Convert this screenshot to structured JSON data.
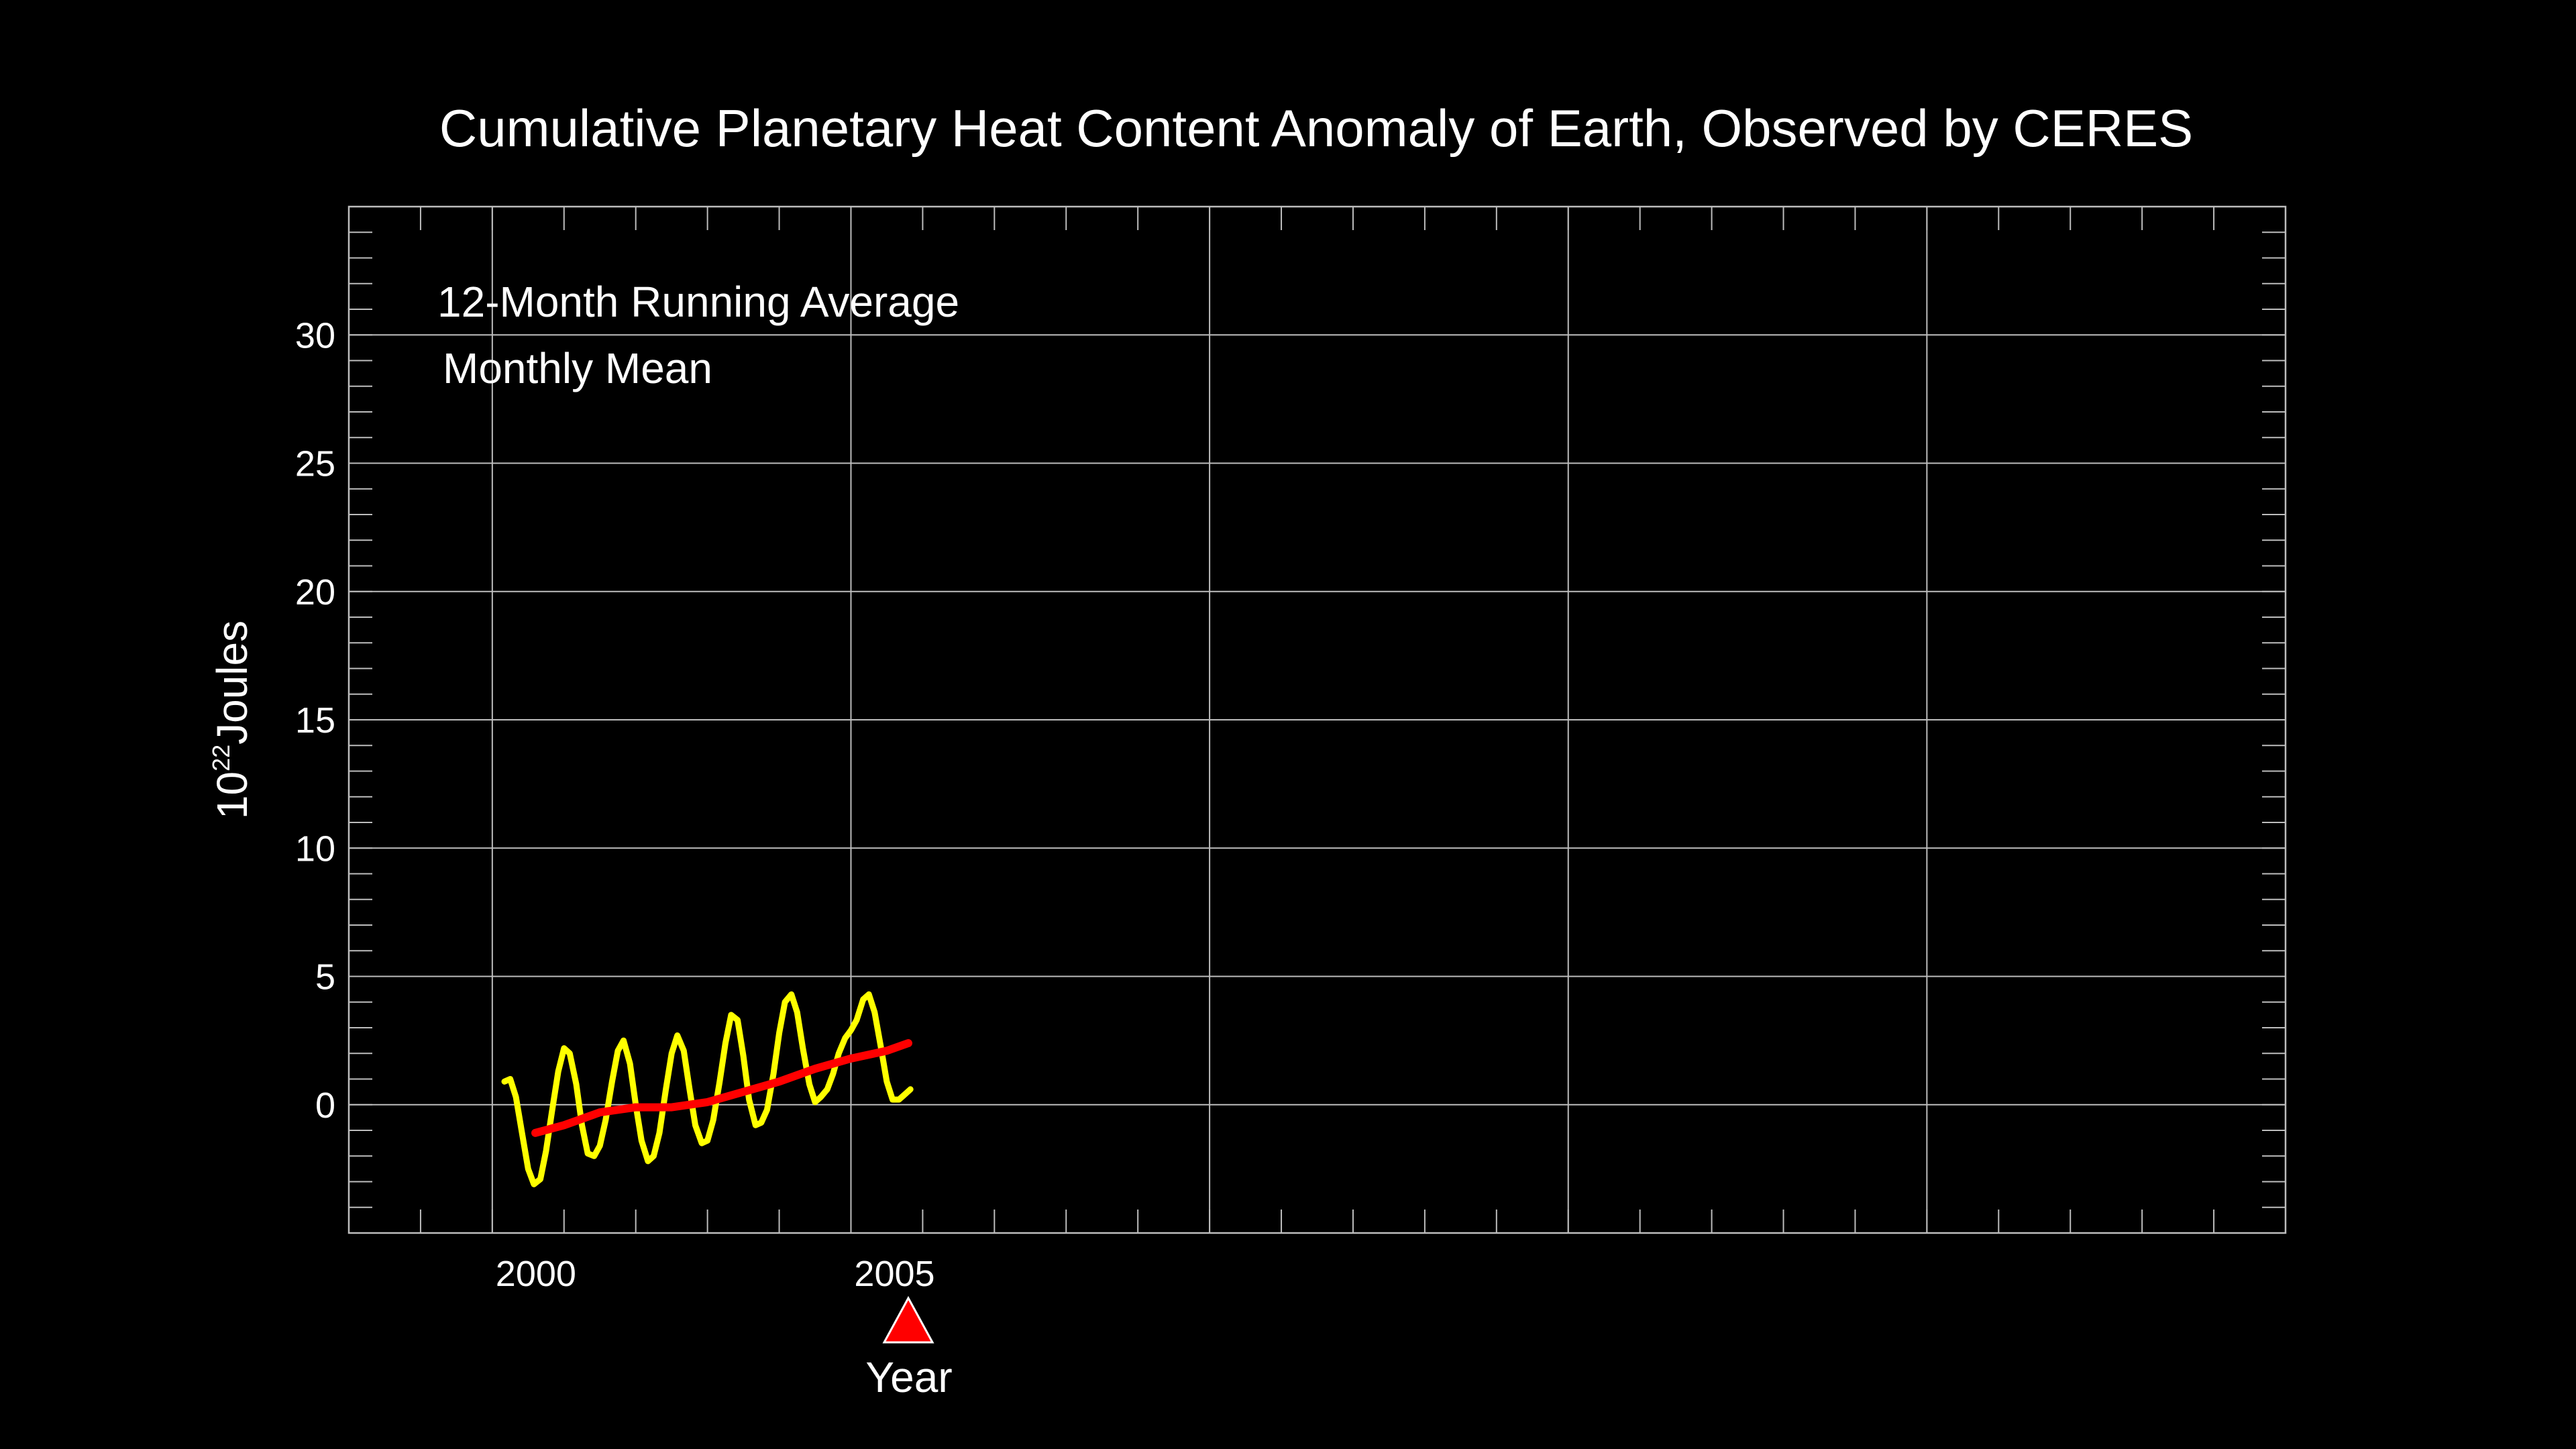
{
  "chart_data": {
    "type": "line",
    "title": "Cumulative Planetary Heat Content Anomaly of Earth, Observed by CERES",
    "xlabel": "Year",
    "ylabel_base": "10",
    "ylabel_exponent": "22",
    "ylabel_unit": "Joules",
    "xlim": [
      1998,
      2025
    ],
    "ylim": [
      -5,
      35
    ],
    "x_ticks": [
      2000,
      2005
    ],
    "x_tick_labels": [
      "2000",
      "2005"
    ],
    "x_grid": [
      2000,
      2005,
      2010,
      2015,
      2020
    ],
    "y_ticks": [
      0,
      5,
      10,
      15,
      20,
      25,
      30
    ],
    "y_tick_labels": [
      "0",
      "5",
      "10",
      "15",
      "20",
      "25",
      "30"
    ],
    "grid": true,
    "legend_position": "top-left",
    "current_marker": {
      "x": 2005.8,
      "color": "#ff0000"
    },
    "series": [
      {
        "name": "12-Month Running Average",
        "color": "#ff0000",
        "x": [
          2000.6,
          2001.0,
          2001.5,
          2002.0,
          2002.5,
          2003.0,
          2003.5,
          2004.0,
          2004.5,
          2005.0,
          2005.5,
          2005.8
        ],
        "y": [
          -1.1,
          -0.8,
          -0.3,
          -0.1,
          -0.1,
          0.1,
          0.5,
          0.9,
          1.4,
          1.8,
          2.1,
          2.4
        ]
      },
      {
        "name": "Monthly Mean",
        "color": "#ffff00",
        "x": [
          2000.17,
          2000.25,
          2000.33,
          2000.42,
          2000.5,
          2000.58,
          2000.67,
          2000.75,
          2000.83,
          2000.92,
          2001.0,
          2001.08,
          2001.17,
          2001.25,
          2001.33,
          2001.42,
          2001.5,
          2001.58,
          2001.67,
          2001.75,
          2001.83,
          2001.92,
          2002.0,
          2002.08,
          2002.17,
          2002.25,
          2002.33,
          2002.42,
          2002.5,
          2002.58,
          2002.67,
          2002.75,
          2002.83,
          2002.92,
          2003.0,
          2003.08,
          2003.17,
          2003.25,
          2003.33,
          2003.42,
          2003.5,
          2003.58,
          2003.67,
          2003.75,
          2003.83,
          2003.92,
          2004.0,
          2004.08,
          2004.17,
          2004.25,
          2004.33,
          2004.42,
          2004.5,
          2004.58,
          2004.67,
          2004.75,
          2004.83,
          2004.92,
          2005.0,
          2005.08,
          2005.17,
          2005.25,
          2005.33,
          2005.42,
          2005.5,
          2005.58,
          2005.67,
          2005.75,
          2005.83
        ],
        "y": [
          0.9,
          1.0,
          0.3,
          -1.2,
          -2.5,
          -3.1,
          -2.9,
          -1.8,
          -0.3,
          1.3,
          2.2,
          2.0,
          0.8,
          -0.8,
          -1.9,
          -2.0,
          -1.6,
          -0.6,
          0.9,
          2.1,
          2.5,
          1.6,
          0.0,
          -1.4,
          -2.2,
          -2.0,
          -1.1,
          0.6,
          2.0,
          2.7,
          2.1,
          0.6,
          -0.8,
          -1.5,
          -1.4,
          -0.6,
          0.9,
          2.4,
          3.5,
          3.3,
          1.9,
          0.2,
          -0.8,
          -0.7,
          -0.2,
          1.2,
          2.8,
          4.0,
          4.3,
          3.6,
          2.2,
          0.8,
          0.1,
          0.3,
          0.6,
          1.2,
          2.0,
          2.6,
          2.9,
          3.3,
          4.1,
          4.3,
          3.6,
          2.2,
          0.9,
          0.2,
          0.2,
          0.4,
          0.6
        ]
      }
    ]
  }
}
